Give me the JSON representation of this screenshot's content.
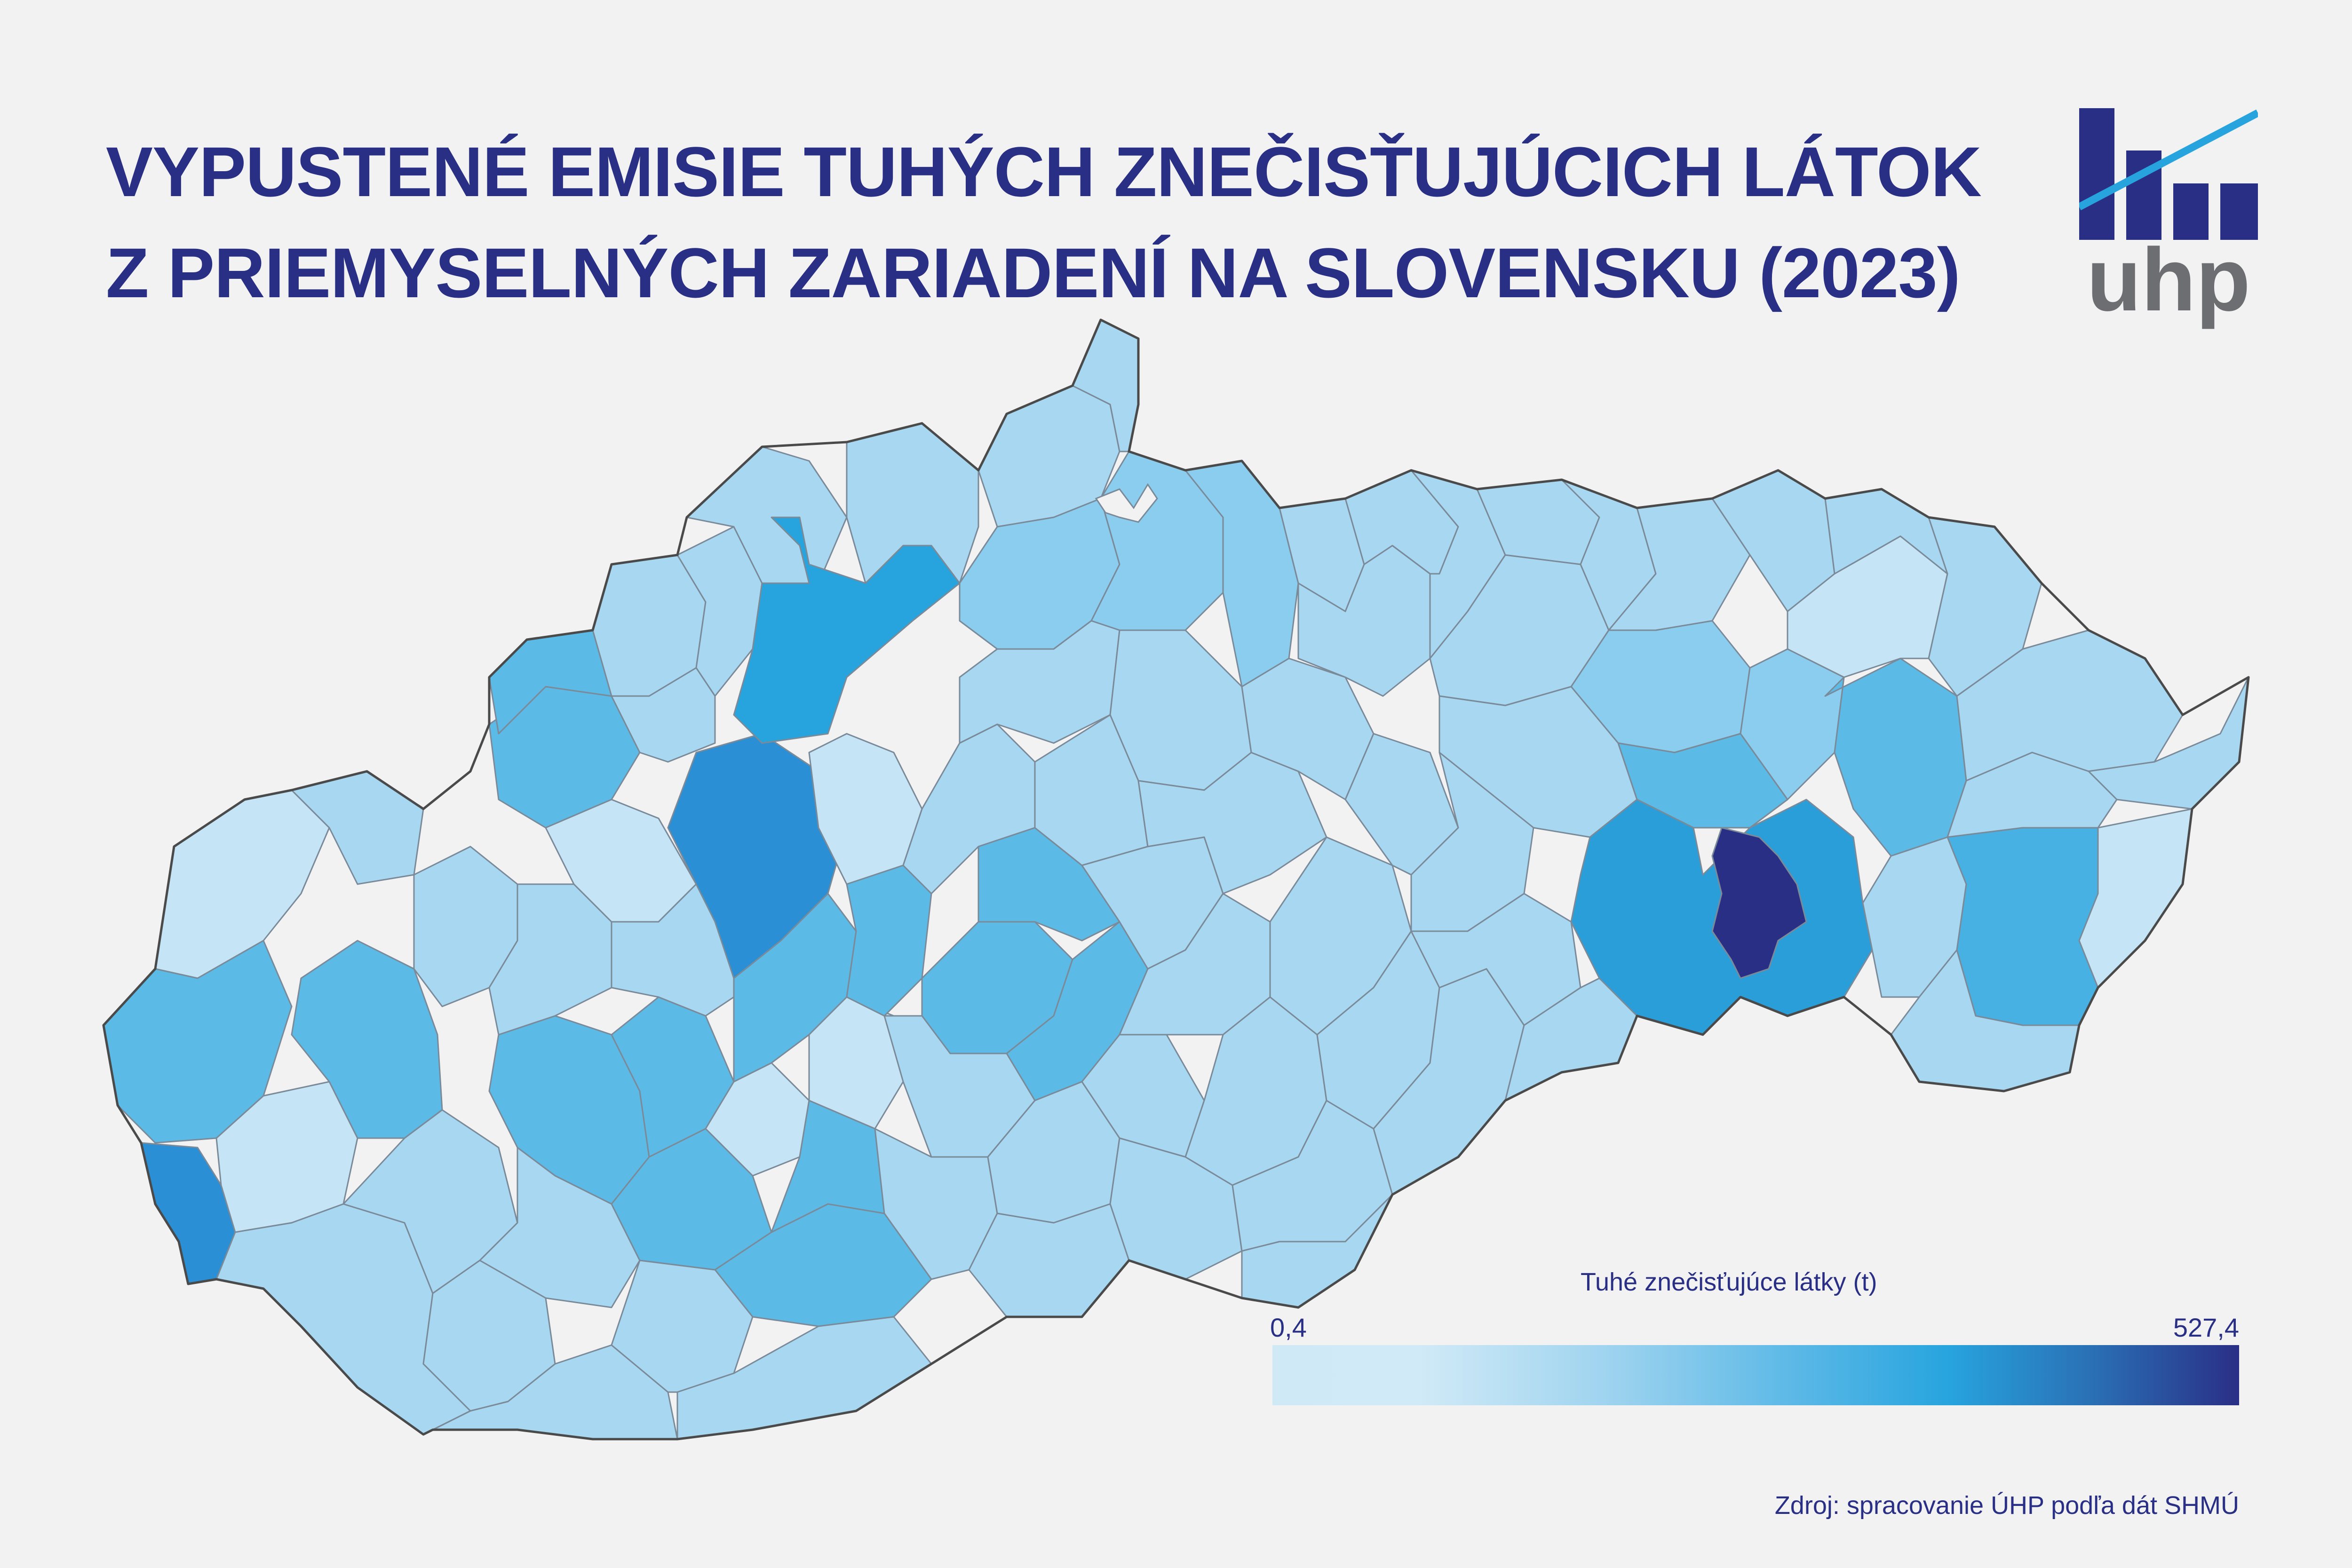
{
  "header": {
    "title_line_1": "VYPUSTENÉ EMISIE TUHÝCH ZNEČISŤUJÚCICH LÁTOK",
    "title_line_2": "Z PRIEMYSELNÝCH ZARIADENÍ NA SLOVENSKU (2023)"
  },
  "logo": {
    "text": "uhp",
    "bar_color": "#2a2f86",
    "line_color": "#27a4de",
    "text_color": "#6d6e71"
  },
  "legend": {
    "title": "Tuhé znečisťujúce látky (t)",
    "min_label": "0,4",
    "max_label": "527,4",
    "min_value": 0.4,
    "max_value": 527.4,
    "color_low": "#cfe9f7",
    "color_mid": "#27a4de",
    "color_high": "#2a2f86"
  },
  "source": "Zdroj: spracovanie ÚHP podľa dát SHMÚ",
  "map": {
    "background_color": "#f2f2f2",
    "border_color": "#4a4a4a",
    "district_border_color": "#7a8a99",
    "highest_district_color": "#2a2f86"
  }
}
